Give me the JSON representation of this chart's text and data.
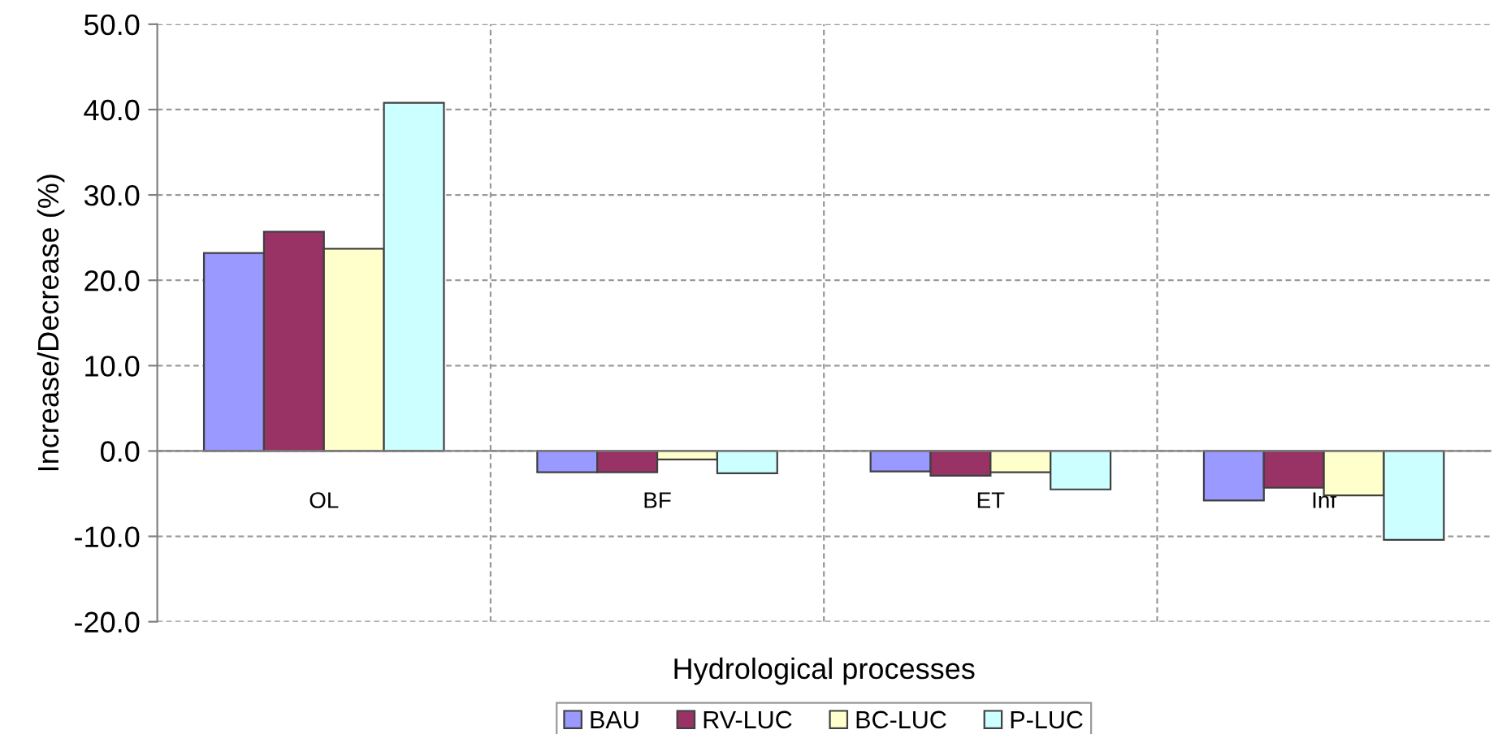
{
  "chart_data": {
    "type": "bar",
    "xlabel": "Hydrological processes",
    "ylabel": "Increase/Decrease (%)",
    "categories": [
      "OL",
      "BF",
      "ET",
      "Inf"
    ],
    "series": [
      {
        "name": "BAU",
        "color": "#9999ff",
        "values": [
          23.2,
          -2.5,
          -2.4,
          -5.8
        ]
      },
      {
        "name": "RV-LUC",
        "color": "#993366",
        "values": [
          25.7,
          -2.5,
          -2.9,
          -4.3
        ]
      },
      {
        "name": "BC-LUC",
        "color": "#ffffcc",
        "values": [
          23.7,
          -1.0,
          -2.5,
          -5.2
        ]
      },
      {
        "name": "P-LUC",
        "color": "#ccffff",
        "values": [
          40.8,
          -2.6,
          -4.5,
          -10.4
        ]
      }
    ],
    "ylim": [
      -20,
      50
    ],
    "yticks": [
      {
        "value": -20,
        "label": "-20.0"
      },
      {
        "value": -10,
        "label": "-10.0"
      },
      {
        "value": 0,
        "label": "0.0"
      },
      {
        "value": 10,
        "label": "10.0"
      },
      {
        "value": 20,
        "label": "20.0"
      },
      {
        "value": 30,
        "label": "30.0"
      },
      {
        "value": 40,
        "label": "40.0"
      },
      {
        "value": 50,
        "label": "50.0"
      }
    ],
    "grid": true,
    "legend": "bottom"
  }
}
